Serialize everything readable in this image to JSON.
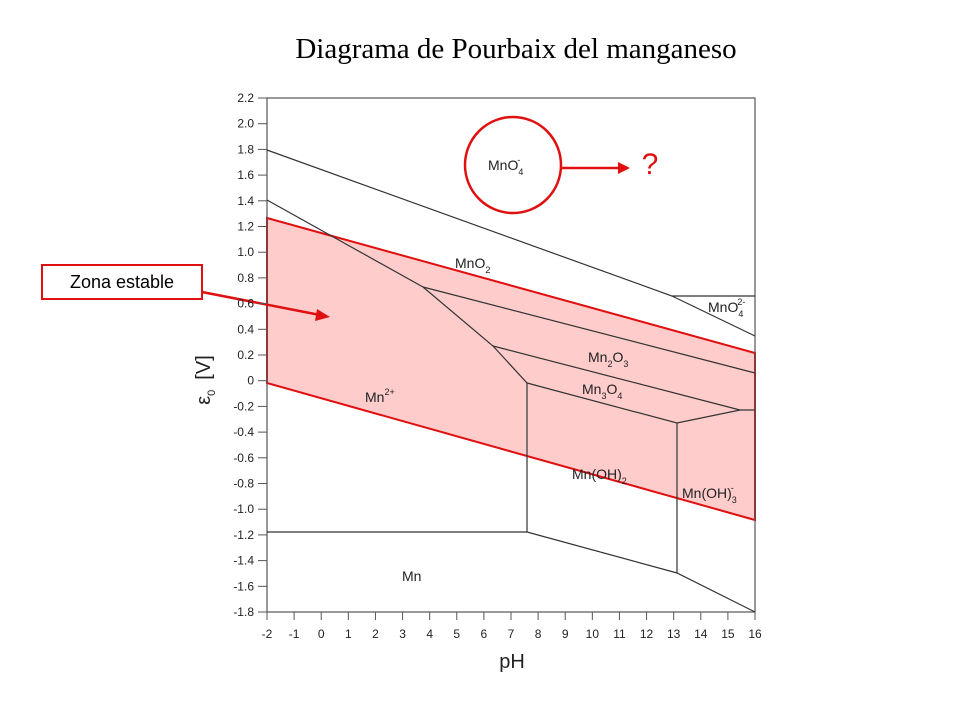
{
  "title": "Diagrama de Pourbaix del manganeso",
  "x_axis": {
    "label": "pH",
    "ticks": [
      "-2",
      "-1",
      "0",
      "1",
      "2",
      "3",
      "4",
      "5",
      "6",
      "7",
      "8",
      "9",
      "10",
      "11",
      "12",
      "13",
      "14",
      "15",
      "16"
    ]
  },
  "y_axis": {
    "label_parts": [
      "ε",
      "0",
      "[V]"
    ],
    "ticks": [
      "2.2",
      "2.0",
      "1.8",
      "1.6",
      "1.4",
      "1.2",
      "1.0",
      "0.8",
      "0.6",
      "0.4",
      "0.2",
      "0",
      "-0.2",
      "-0.4",
      "-0.6",
      "-0.8",
      "-1.0",
      "-1.2",
      "-1.4",
      "-1.6",
      "-1.8"
    ]
  },
  "regions": [
    {
      "parts": [
        "MnO",
        "4",
        "-"
      ]
    },
    {
      "parts": [
        "MnO",
        "2"
      ]
    },
    {
      "parts": [
        "MnO",
        "4",
        "2-"
      ]
    },
    {
      "parts": [
        "Mn",
        "2+"
      ]
    },
    {
      "parts": [
        "Mn",
        "2",
        "O",
        "3"
      ]
    },
    {
      "parts": [
        "Mn",
        "3",
        "O",
        "4"
      ]
    },
    {
      "parts": [
        "Mn(OH)",
        "2"
      ]
    },
    {
      "parts": [
        "Mn(OH)",
        "3",
        "-"
      ]
    },
    {
      "parts": [
        "Mn"
      ]
    }
  ],
  "callouts": {
    "question": "?",
    "stable_zone": "Zona estable"
  }
}
